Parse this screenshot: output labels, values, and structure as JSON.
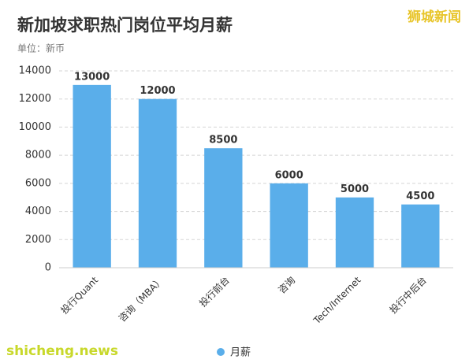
{
  "chart_data": {
    "type": "bar",
    "title": "新加坡求职热门岗位平均月薪",
    "subtitle": "单位：新币",
    "categories": [
      "投行Quant",
      "咨询（MBA）",
      "投行前台",
      "咨询",
      "Tech/Internet",
      "投行中后台"
    ],
    "series": [
      {
        "name": "月薪",
        "color": "#5aaeea",
        "values": [
          13000,
          12000,
          8500,
          6000,
          5000,
          4500
        ]
      }
    ],
    "ylim": [
      0,
      14000
    ],
    "yticks": [
      0,
      2000,
      4000,
      6000,
      8000,
      10000,
      12000,
      14000
    ],
    "grid": true,
    "legend": "bottom"
  },
  "branding": {
    "logo_text": "狮城新闻",
    "site_url": "shicheng.news"
  }
}
